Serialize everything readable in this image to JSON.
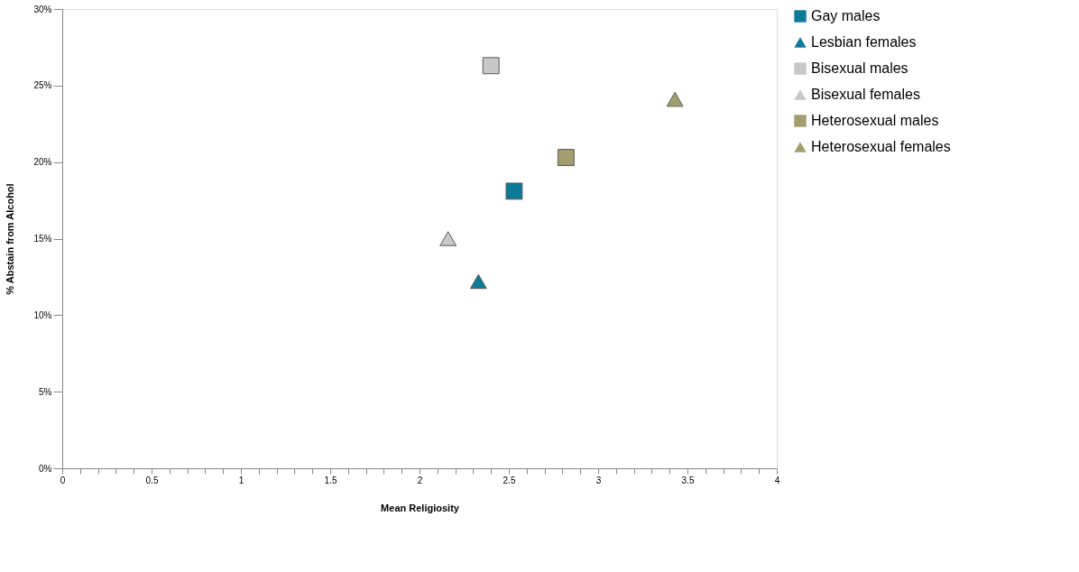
{
  "chart_data": {
    "type": "scatter",
    "xlabel": "Mean Religiosity",
    "ylabel": "% Abstain from Alcohol",
    "series": [
      {
        "name": "Gay males",
        "color": "#0f7a98",
        "marker": "square",
        "x": [
          2.53
        ],
        "values": [
          18.1
        ]
      },
      {
        "name": "Lesbian females",
        "color": "#0f7a98",
        "marker": "triangle",
        "x": [
          2.33
        ],
        "values": [
          12.2
        ]
      },
      {
        "name": "Bisexual males",
        "color": "#c8c8c8",
        "marker": "square",
        "x": [
          2.4
        ],
        "values": [
          26.3
        ]
      },
      {
        "name": "Bisexual females",
        "color": "#c8c8c8",
        "marker": "triangle",
        "x": [
          2.16
        ],
        "values": [
          15.0
        ]
      },
      {
        "name": "Heterosexual males",
        "color": "#a39e6f",
        "marker": "square",
        "x": [
          2.82
        ],
        "values": [
          20.3
        ]
      },
      {
        "name": "Heterosexual females",
        "color": "#a39e6f",
        "marker": "triangle",
        "x": [
          3.43
        ],
        "values": [
          24.1
        ]
      }
    ],
    "xlim": [
      0,
      4
    ],
    "xticks": [
      0,
      {
        "value": 0.1,
        "label": null
      },
      {
        "value": 0.2,
        "label": null
      },
      {
        "value": 0.3,
        "label": null
      },
      {
        "value": 0.4,
        "label": null
      },
      0.5,
      {
        "value": 0.6,
        "label": null
      },
      {
        "value": 0.7,
        "label": null
      },
      {
        "value": 0.8,
        "label": null
      },
      {
        "value": 0.9,
        "label": null
      },
      1,
      {
        "value": 1.1,
        "label": null
      },
      {
        "value": 1.2,
        "label": null
      },
      {
        "value": 1.3,
        "label": null
      },
      {
        "value": 1.4,
        "label": null
      },
      1.5,
      {
        "value": 1.6,
        "label": null
      },
      {
        "value": 1.7,
        "label": null
      },
      {
        "value": 1.8,
        "label": null
      },
      {
        "value": 1.9,
        "label": null
      },
      2,
      {
        "value": 2.1,
        "label": null
      },
      {
        "value": 2.2,
        "label": null
      },
      {
        "value": 2.3,
        "label": null
      },
      {
        "value": 2.4,
        "label": null
      },
      2.5,
      {
        "value": 2.6,
        "label": null
      },
      {
        "value": 2.7,
        "label": null
      },
      {
        "value": 2.8,
        "label": null
      },
      {
        "value": 2.9,
        "label": null
      },
      3,
      {
        "value": 3.1,
        "label": null
      },
      {
        "value": 3.2,
        "label": null
      },
      {
        "value": 3.3,
        "label": null
      },
      {
        "value": 3.4,
        "label": null
      },
      3.5,
      {
        "value": 3.6,
        "label": null
      },
      {
        "value": 3.7,
        "label": null
      },
      {
        "value": 3.8,
        "label": null
      },
      {
        "value": 3.9,
        "label": null
      },
      4
    ],
    "ylim": [
      0,
      30
    ],
    "yticks": [
      {
        "value": 0,
        "label": "0%"
      },
      {
        "value": 5,
        "label": "5%"
      },
      {
        "value": 10,
        "label": "10%"
      },
      {
        "value": 15,
        "label": "15%"
      },
      {
        "value": 20,
        "label": "20%"
      },
      {
        "value": 25,
        "label": "25%"
      },
      {
        "value": 30,
        "label": "30%"
      }
    ],
    "grid": false,
    "legend": "right"
  }
}
